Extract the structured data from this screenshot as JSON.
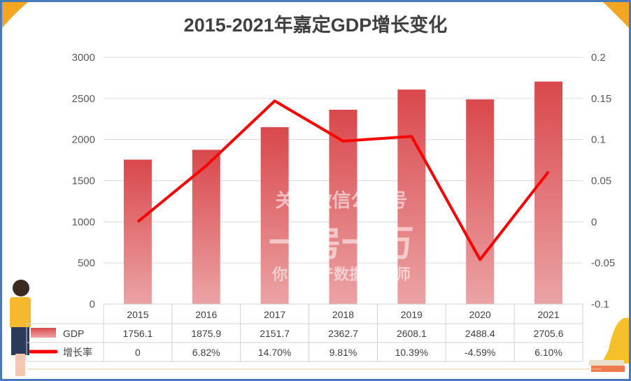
{
  "chart_data": {
    "type": "bar+line",
    "title": "2015-2021年嘉定GDP增长变化",
    "categories": [
      "2015",
      "2016",
      "2017",
      "2018",
      "2019",
      "2020",
      "2021"
    ],
    "series": [
      {
        "name": "GDP",
        "type": "bar",
        "axis": "left",
        "values": [
          1756.1,
          1875.9,
          2151.7,
          2362.7,
          2608.1,
          2488.4,
          2705.6
        ],
        "labels": [
          "1756.1",
          "1875.9",
          "2151.7",
          "2362.7",
          "2608.1",
          "2488.4",
          "2705.6"
        ],
        "color": "#d9484c"
      },
      {
        "name": "增长率",
        "type": "line",
        "axis": "right",
        "values": [
          0,
          0.0682,
          0.147,
          0.0981,
          0.1039,
          -0.0459,
          0.061
        ],
        "labels": [
          "0",
          "6.82%",
          "14.70%",
          "9.81%",
          "10.39%",
          "-4.59%",
          "6.10%"
        ],
        "color": "#ff0000"
      }
    ],
    "y_left": {
      "range": [
        0,
        3000
      ],
      "ticks": [
        "0",
        "500",
        "1000",
        "1500",
        "2000",
        "2500",
        "3000"
      ]
    },
    "y_right": {
      "range": [
        -0.1,
        0.2
      ],
      "ticks": [
        "-0.1",
        "-0.05",
        "0",
        "0.05",
        "0.1",
        "0.15",
        "0.2"
      ]
    },
    "grid": true,
    "legend": "data-table"
  },
  "watermark": {
    "line1": "关注微信公众号",
    "line2": "一房一万",
    "line3": "你的房产数据分析师"
  }
}
